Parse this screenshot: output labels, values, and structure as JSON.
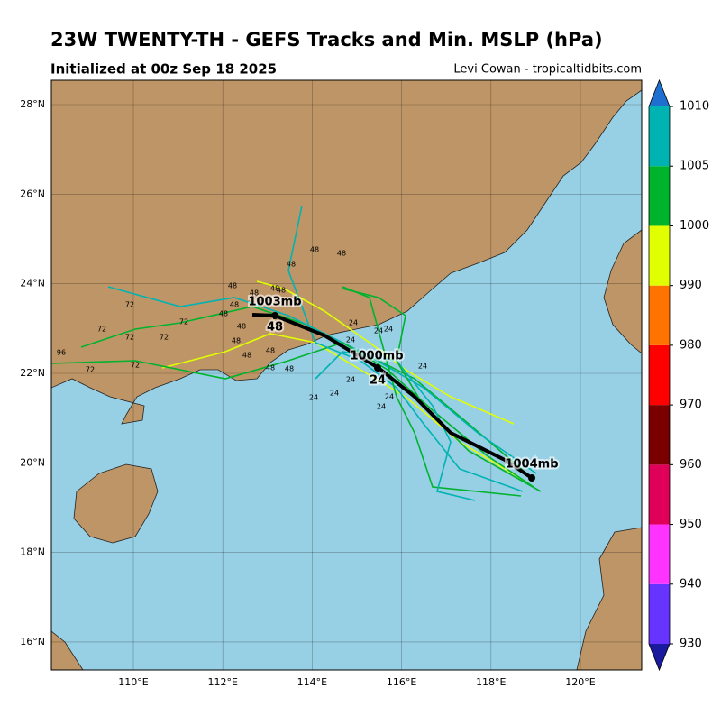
{
  "header": {
    "title": "23W TWENTY-TH - GEFS Tracks and Min. MSLP (hPa)",
    "subtitle": "Initialized at 00z Sep 18 2025",
    "credit": "Levi Cowan - tropicaltidbits.com"
  },
  "map": {
    "lat_labels": [
      "28°N",
      "26°N",
      "24°N",
      "22°N",
      "20°N",
      "18°N",
      "16°N"
    ],
    "lon_labels": [
      "110°E",
      "112°E",
      "114°E",
      "116°E",
      "118°E",
      "120°E"
    ],
    "mean_track_labels": [
      "1003mb",
      "48",
      "1000mb",
      "24",
      "1004mb"
    ],
    "member_hour_labels": [
      "72",
      "72",
      "72",
      "72",
      "72",
      "72",
      "96",
      "72",
      "48",
      "48",
      "48",
      "48",
      "48",
      "48",
      "48",
      "48",
      "48",
      "48",
      "48",
      "48",
      "48",
      "48",
      "48",
      "24",
      "24",
      "24",
      "24",
      "24",
      "24",
      "24",
      "24",
      "24",
      "24"
    ]
  },
  "colorbar": {
    "ticks": [
      930,
      940,
      950,
      960,
      970,
      980,
      990,
      1000,
      1005,
      1010
    ],
    "colors": [
      "#6633ff",
      "#ff33ff",
      "#e0005a",
      "#7a0000",
      "#ff0000",
      "#ff7300",
      "#e0ff00",
      "#00b32d",
      "#00b3b3"
    ],
    "under_color": "#1a1a9e",
    "over_color": "#1e6fd0"
  }
}
